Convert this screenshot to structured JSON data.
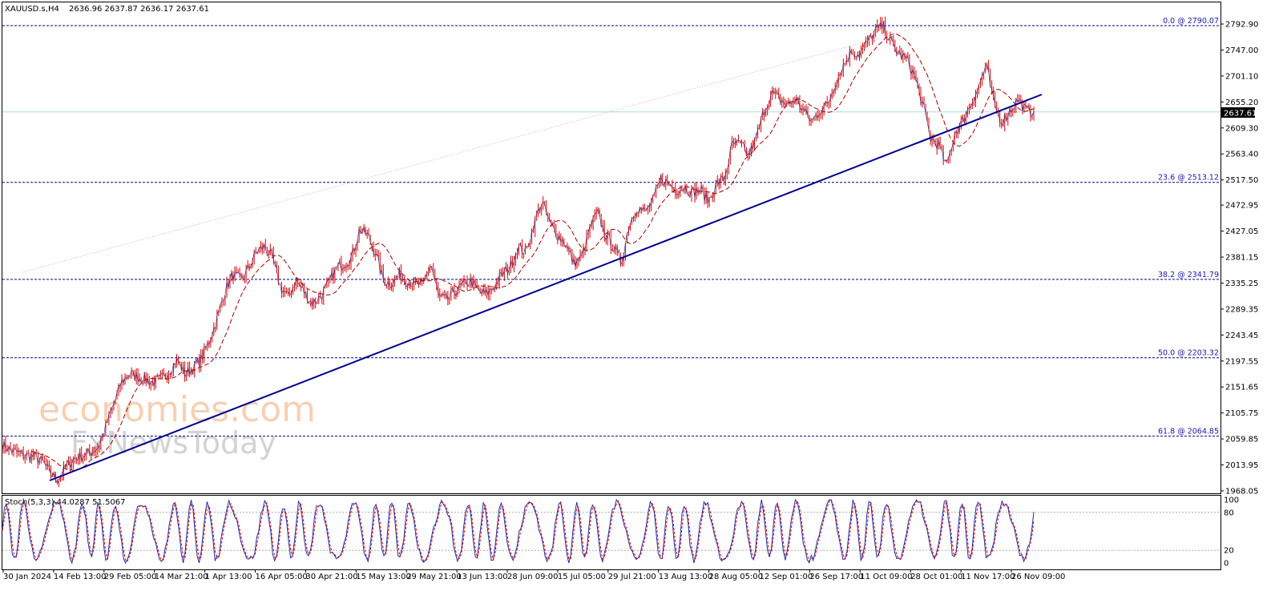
{
  "header": {
    "symbol": "XAUUSD.s,H4",
    "ohlc": "2636.96 2637.87 2636.17 2637.61"
  },
  "price_tag": "2637.61",
  "watermark": {
    "line1": "economies.com",
    "line2": "FxNewsToday"
  },
  "stoch": {
    "label": "Stoch(5,3,3) 44.0287 51.5067",
    "levels": [
      "100",
      "80",
      "20",
      "0"
    ]
  },
  "fib_levels": [
    {
      "label": "0.0 @ 2790.07",
      "value": 2790.07
    },
    {
      "label": "23.6 @ 2513.12",
      "value": 2513.12
    },
    {
      "label": "38.2 @ 2341.79",
      "value": 2341.79
    },
    {
      "label": "50.0 @ 2203.32",
      "value": 2203.32
    },
    {
      "label": "61.8 @ 2064.85",
      "value": 2064.85
    }
  ],
  "colors": {
    "candles": "#e00000",
    "ma": "#a00000",
    "trendline": "#00008b",
    "fib": "#00008b",
    "stoch_main": "#1e2fa8",
    "stoch_signal": "#e00000",
    "current_price_line": "#a8dce8"
  },
  "chart_data": {
    "type": "line",
    "title": "",
    "ylabel": "",
    "xlabel": "",
    "ylim": [
      1968.05,
      2815
    ],
    "y_ticks": [
      "2792.90",
      "2747.00",
      "2701.10",
      "2655.20",
      "2609.30",
      "2563.40",
      "2517.50",
      "2472.95",
      "2427.05",
      "2381.15",
      "2335.25",
      "2289.35",
      "2243.45",
      "2197.55",
      "2151.65",
      "2105.75",
      "2059.85",
      "2013.95",
      "1968.05"
    ],
    "x_ticks": [
      "30 Jan 2024",
      "14 Feb 13:00",
      "29 Feb 05:00",
      "14 Mar 21:00",
      "1 Apr 13:00",
      "16 Apr 05:00",
      "30 Apr 21:00",
      "15 May 13:00",
      "29 May 21:00",
      "13 Jun 13:00",
      "28 Jun 09:00",
      "15 Jul 05:00",
      "29 Jul 21:00",
      "13 Aug 13:00",
      "28 Aug 05:00",
      "12 Sep 01:00",
      "26 Sep 17:00",
      "11 Oct 09:00",
      "28 Oct 01:00",
      "11 Nov 17:00",
      "26 Nov 09:00"
    ],
    "series": [
      {
        "values": [
          2050,
          2040,
          2035,
          2030,
          2028,
          2020,
          2000,
          1988,
          2010,
          2025,
          2030,
          2035,
          2045,
          2080,
          2120,
          2160,
          2175,
          2170,
          2165,
          2160,
          2165,
          2180,
          2200,
          2175,
          2185,
          2200,
          2230,
          2270,
          2320,
          2350,
          2340,
          2360,
          2390,
          2400,
          2380,
          2330,
          2310,
          2340,
          2320,
          2300,
          2310,
          2330,
          2360,
          2370,
          2380,
          2430,
          2420,
          2390,
          2340,
          2335,
          2350,
          2340,
          2335,
          2330,
          2370,
          2310,
          2305,
          2320,
          2330,
          2340,
          2320,
          2315,
          2330,
          2350,
          2365,
          2400,
          2390,
          2440,
          2480,
          2440,
          2420,
          2405,
          2370,
          2380,
          2430,
          2460,
          2420,
          2400,
          2370,
          2440,
          2470,
          2460,
          2480,
          2520,
          2510,
          2500,
          2505,
          2495,
          2500,
          2480,
          2510,
          2520,
          2580,
          2580,
          2560,
          2590,
          2640,
          2670,
          2660,
          2650,
          2660,
          2640,
          2620,
          2640,
          2650,
          2690,
          2720,
          2745,
          2740,
          2760,
          2780,
          2790,
          2760,
          2740,
          2730,
          2700,
          2650,
          2590,
          2580,
          2540,
          2600,
          2620,
          2650,
          2680,
          2720,
          2650,
          2620,
          2640,
          2660,
          2640,
          2637.61
        ]
      }
    ]
  }
}
